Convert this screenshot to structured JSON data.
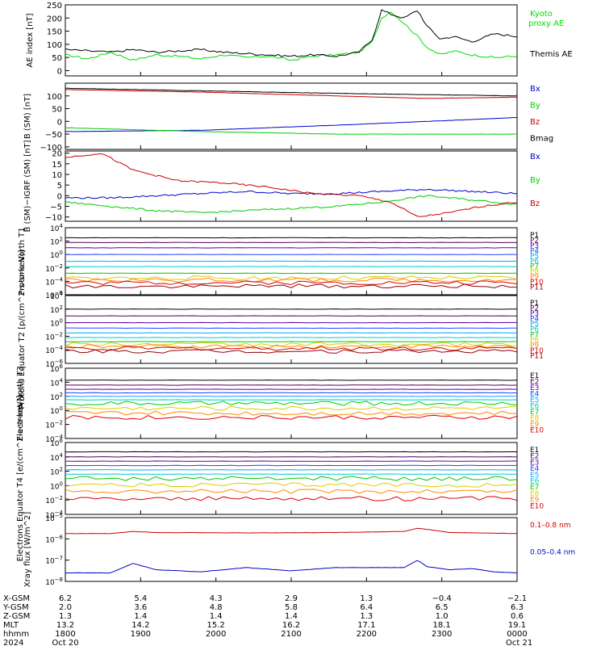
{
  "chart_data": [
    {
      "type": "line",
      "ylabel": "AE index [nT]",
      "ylim": [
        -20,
        250
      ],
      "yticks": [
        0,
        50,
        100,
        150,
        200,
        250
      ],
      "series": [
        {
          "name": "Kyoto proxy AE",
          "color": "#00dd00",
          "x": [
            0,
            0.05,
            0.1,
            0.15,
            0.2,
            0.25,
            0.3,
            0.35,
            0.4,
            0.45,
            0.5,
            0.55,
            0.6,
            0.65,
            0.68,
            0.7,
            0.72,
            0.75,
            0.78,
            0.8,
            0.83,
            0.86,
            0.9,
            0.95,
            1.0
          ],
          "values": [
            60,
            45,
            70,
            40,
            60,
            55,
            45,
            60,
            50,
            55,
            40,
            55,
            60,
            70,
            110,
            200,
            225,
            180,
            130,
            90,
            60,
            75,
            60,
            50,
            55
          ]
        },
        {
          "name": "Themis AE",
          "color": "#000000",
          "x": [
            0,
            0.05,
            0.1,
            0.15,
            0.2,
            0.25,
            0.3,
            0.35,
            0.4,
            0.45,
            0.5,
            0.55,
            0.6,
            0.65,
            0.68,
            0.7,
            0.72,
            0.75,
            0.78,
            0.8,
            0.83,
            0.86,
            0.9,
            0.95,
            1.0
          ],
          "values": [
            80,
            75,
            70,
            80,
            70,
            75,
            80,
            70,
            65,
            60,
            55,
            60,
            55,
            70,
            120,
            230,
            215,
            200,
            230,
            170,
            120,
            130,
            110,
            140,
            130
          ]
        }
      ]
    },
    {
      "type": "line",
      "ylabel": "B (SM) [nT]",
      "ylim": [
        -110,
        150
      ],
      "yticks": [
        -100,
        -50,
        0,
        50,
        100
      ],
      "series": [
        {
          "name": "Bx",
          "color": "#0000cc",
          "x": [
            0,
            0.3,
            0.6,
            1.0
          ],
          "values": [
            -40,
            -35,
            -15,
            15
          ]
        },
        {
          "name": "By",
          "color": "#00cc00",
          "x": [
            0,
            0.3,
            0.6,
            1.0
          ],
          "values": [
            -25,
            -40,
            -50,
            -50
          ]
        },
        {
          "name": "Bz",
          "color": "#cc0000",
          "x": [
            0,
            0.3,
            0.6,
            0.8,
            1.0
          ],
          "values": [
            125,
            115,
            100,
            90,
            95
          ]
        },
        {
          "name": "Bmag",
          "color": "#000000",
          "x": [
            0,
            0.3,
            0.6,
            1.0
          ],
          "values": [
            130,
            120,
            110,
            100
          ]
        }
      ]
    },
    {
      "type": "line",
      "ylabel": "B (SM)−IGRF (SM) [nT]",
      "ylim": [
        -12,
        21
      ],
      "yticks": [
        -10,
        -5,
        0,
        5,
        10,
        15,
        20
      ],
      "series": [
        {
          "name": "Bx",
          "color": "#0000cc",
          "x": [
            0,
            0.1,
            0.2,
            0.3,
            0.4,
            0.5,
            0.6,
            0.7,
            0.8,
            0.9,
            1.0
          ],
          "values": [
            -1,
            -1,
            0,
            1,
            2,
            1,
            1,
            2,
            3,
            2,
            1
          ]
        },
        {
          "name": "By",
          "color": "#00cc00",
          "x": [
            0,
            0.1,
            0.2,
            0.3,
            0.4,
            0.5,
            0.6,
            0.7,
            0.8,
            0.9,
            1.0
          ],
          "values": [
            -3,
            -5,
            -7,
            -8,
            -7,
            -6,
            -5,
            -3,
            0,
            -2,
            -4
          ]
        },
        {
          "name": "Bz",
          "color": "#cc0000",
          "x": [
            0,
            0.08,
            0.15,
            0.25,
            0.35,
            0.45,
            0.55,
            0.65,
            0.72,
            0.78,
            0.85,
            0.92,
            1.0
          ],
          "values": [
            18,
            20,
            12,
            7,
            6,
            4,
            1,
            0,
            -3,
            -10,
            -8,
            -5,
            -3
          ]
        }
      ]
    },
    {
      "type": "line",
      "ylabel": "Protons North T1",
      "log": true,
      "ylim": [
        -6,
        4
      ],
      "ytick_labels": [
        "10^-6",
        "10^-4",
        "10^-2",
        "10^0",
        "10^2",
        "10^4"
      ],
      "series": [
        {
          "name": "P1",
          "color": "#000000",
          "values": [
            2.5
          ]
        },
        {
          "name": "P2",
          "color": "#550055",
          "values": [
            1.8
          ]
        },
        {
          "name": "P3",
          "color": "#5500aa",
          "values": [
            1.0
          ]
        },
        {
          "name": "P4",
          "color": "#2244ff",
          "values": [
            0.0
          ]
        },
        {
          "name": "P5",
          "color": "#00aaff",
          "values": [
            -1.0
          ]
        },
        {
          "name": "P6",
          "color": "#00cccc",
          "values": [
            -1.8
          ]
        },
        {
          "name": "P7",
          "color": "#00cc00",
          "values": [
            -2.8
          ]
        },
        {
          "name": "P8",
          "color": "#ddcc00",
          "values": [
            -3.5
          ]
        },
        {
          "name": "P9",
          "color": "#ff8800",
          "values": [
            -3.8
          ]
        },
        {
          "name": "P10",
          "color": "#dd0000",
          "values": [
            -4.2
          ]
        },
        {
          "name": "P11",
          "color": "#990000",
          "values": [
            -4.7
          ]
        }
      ]
    },
    {
      "type": "line",
      "ylabel": "Protons Equator T2 [p/(cm^2-s-sr-keV)]",
      "log": true,
      "ylim": [
        -6,
        4
      ],
      "ytick_labels": [
        "10^-6",
        "10^-4",
        "10^-2",
        "10^0",
        "10^2",
        "10^4"
      ],
      "series": [
        {
          "name": "P1",
          "color": "#000000",
          "values": [
            2.0
          ]
        },
        {
          "name": "P2",
          "color": "#550055",
          "values": [
            1.0
          ]
        },
        {
          "name": "P3",
          "color": "#5500aa",
          "values": [
            0.0
          ]
        },
        {
          "name": "P4",
          "color": "#2244ff",
          "values": [
            -0.8
          ]
        },
        {
          "name": "P5",
          "color": "#00aaff",
          "values": [
            -1.5
          ]
        },
        {
          "name": "P6",
          "color": "#00cccc",
          "values": [
            -2.2
          ]
        },
        {
          "name": "P7",
          "color": "#00cc00",
          "values": [
            -2.8
          ]
        },
        {
          "name": "P8",
          "color": "#ddcc00",
          "values": [
            -3.2
          ]
        },
        {
          "name": "P9",
          "color": "#ff8800",
          "values": [
            -3.5
          ]
        },
        {
          "name": "P10",
          "color": "#dd0000",
          "values": [
            -3.8
          ]
        },
        {
          "name": "P11",
          "color": "#990000",
          "values": [
            -4.2
          ]
        }
      ]
    },
    {
      "type": "line",
      "ylabel": "Electrons North T3",
      "log": true,
      "ylim": [
        -4,
        6
      ],
      "ytick_labels": [
        "10^-4",
        "10^-2",
        "10^0",
        "10^2",
        "10^4",
        "10^6"
      ],
      "series": [
        {
          "name": "E1",
          "color": "#000000",
          "values": [
            4.3
          ]
        },
        {
          "name": "E2",
          "color": "#550055",
          "values": [
            3.6
          ]
        },
        {
          "name": "E3",
          "color": "#5500aa",
          "values": [
            3.0
          ]
        },
        {
          "name": "E4",
          "color": "#2244ff",
          "values": [
            2.5
          ]
        },
        {
          "name": "E5",
          "color": "#00aaff",
          "values": [
            2.0
          ]
        },
        {
          "name": "E6",
          "color": "#00cccc",
          "values": [
            1.5
          ]
        },
        {
          "name": "E7",
          "color": "#00cc00",
          "values": [
            1.0
          ]
        },
        {
          "name": "E8",
          "color": "#ddcc00",
          "values": [
            0.3
          ]
        },
        {
          "name": "E9",
          "color": "#ff8800",
          "values": [
            -0.4
          ]
        },
        {
          "name": "E10",
          "color": "#dd0000",
          "values": [
            -1.0
          ]
        }
      ]
    },
    {
      "type": "line",
      "ylabel": "Electrons Equator T4 [e/(cm^2-s-sr-keV)]",
      "log": true,
      "ylim": [
        -4,
        6
      ],
      "ytick_labels": [
        "10^-4",
        "10^-2",
        "10^0",
        "10^2",
        "10^4",
        "10^6"
      ],
      "series": [
        {
          "name": "E1",
          "color": "#000000",
          "values": [
            4.7
          ]
        },
        {
          "name": "E2",
          "color": "#550055",
          "values": [
            4.0
          ]
        },
        {
          "name": "E3",
          "color": "#5500aa",
          "values": [
            3.4
          ]
        },
        {
          "name": "E4",
          "color": "#2244ff",
          "values": [
            2.8
          ]
        },
        {
          "name": "E5",
          "color": "#00aaff",
          "values": [
            2.2
          ]
        },
        {
          "name": "E6",
          "color": "#00cccc",
          "values": [
            1.6
          ]
        },
        {
          "name": "E7",
          "color": "#00cc00",
          "values": [
            1.0
          ]
        },
        {
          "name": "E8",
          "color": "#ddcc00",
          "values": [
            0.1
          ]
        },
        {
          "name": "E9",
          "color": "#ff8800",
          "values": [
            -0.8
          ]
        },
        {
          "name": "E10",
          "color": "#dd0000",
          "values": [
            -1.8
          ]
        }
      ]
    },
    {
      "type": "line",
      "ylabel": "Xray flux [W/m^2]",
      "log": true,
      "ylim": [
        -8,
        -5
      ],
      "ytick_labels": [
        "10^-8",
        "10^-7",
        "10^-6",
        "10^-5"
      ],
      "series": [
        {
          "name": "0.1–0.8 nm",
          "color": "#cc0000",
          "x": [
            0,
            0.1,
            0.15,
            0.2,
            0.4,
            0.6,
            0.75,
            0.78,
            0.8,
            0.85,
            1.0
          ],
          "values": [
            -5.75,
            -5.75,
            -5.65,
            -5.7,
            -5.72,
            -5.7,
            -5.65,
            -5.5,
            -5.55,
            -5.7,
            -5.75
          ]
        },
        {
          "name": "0.05–0.4 nm",
          "color": "#0000cc",
          "x": [
            0,
            0.1,
            0.15,
            0.2,
            0.3,
            0.4,
            0.5,
            0.6,
            0.75,
            0.78,
            0.8,
            0.85,
            0.9,
            0.95,
            1.0
          ],
          "values": [
            -7.6,
            -7.6,
            -7.15,
            -7.45,
            -7.55,
            -7.35,
            -7.5,
            -7.35,
            -7.35,
            -7.0,
            -7.3,
            -7.45,
            -7.4,
            -7.55,
            -7.6
          ]
        }
      ]
    }
  ],
  "orbit": {
    "row_labels": [
      "X-GSM",
      "Y-GSM",
      "Z-GSM",
      "MLT",
      "hhmm",
      "2024"
    ],
    "columns": [
      [
        "6.2",
        "2.0",
        "1.3",
        "13.2",
        "1800",
        "Oct 20"
      ],
      [
        "5.4",
        "3.6",
        "1.4",
        "14.2",
        "1900",
        ""
      ],
      [
        "4.3",
        "4.8",
        "1.4",
        "15.2",
        "2000",
        ""
      ],
      [
        "2.9",
        "5.8",
        "1.4",
        "16.2",
        "2100",
        ""
      ],
      [
        "1.3",
        "6.4",
        "1.3",
        "17.1",
        "2200",
        ""
      ],
      [
        "−0.4",
        "6.5",
        "1.0",
        "18.1",
        "2300",
        ""
      ],
      [
        "−2.1",
        "6.3",
        "0.6",
        "19.1",
        "0000",
        "Oct 21"
      ]
    ]
  }
}
